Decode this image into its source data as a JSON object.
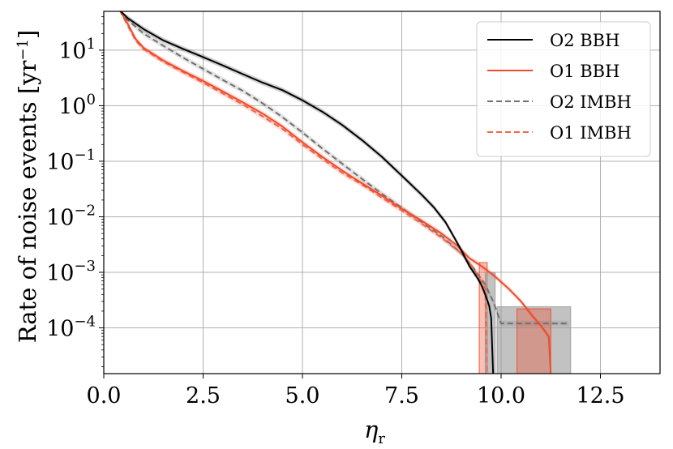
{
  "chart_data": {
    "type": "line",
    "xlabel": "η",
    "xlabel_subscript": "r",
    "ylabel": "Rate of noise events [yr",
    "ylabel_exponent": "−1",
    "ylabel_close": "]",
    "yscale": "log",
    "xlim": [
      0,
      14
    ],
    "ylim": [
      1.5e-05,
      50
    ],
    "grid": true,
    "legend_position": "top-right",
    "x_ticks": [
      {
        "value": 0.0,
        "label": "0.0"
      },
      {
        "value": 2.5,
        "label": "2.5"
      },
      {
        "value": 5.0,
        "label": "5.0"
      },
      {
        "value": 7.5,
        "label": "7.5"
      },
      {
        "value": 10.0,
        "label": "10.0"
      },
      {
        "value": 12.5,
        "label": "12.5"
      }
    ],
    "y_ticks": [
      {
        "value": 10,
        "base": "10",
        "exp": "1"
      },
      {
        "value": 1,
        "base": "10",
        "exp": "0"
      },
      {
        "value": 0.1,
        "base": "10",
        "exp": "−1"
      },
      {
        "value": 0.01,
        "base": "10",
        "exp": "−2"
      },
      {
        "value": 0.001,
        "base": "10",
        "exp": "−3"
      },
      {
        "value": 0.0001,
        "base": "10",
        "exp": "−4"
      }
    ],
    "series": [
      {
        "name": "O2 BBH",
        "color": "#000000",
        "dash": "solid",
        "x": [
          0.4,
          0.6,
          1.0,
          1.5,
          2.0,
          2.5,
          3.0,
          3.5,
          4.0,
          4.5,
          5.0,
          5.5,
          6.0,
          6.5,
          7.0,
          7.5,
          8.0,
          8.3,
          8.6,
          8.8,
          9.0,
          9.2,
          9.4,
          9.5,
          9.6,
          9.7,
          9.75,
          9.8
        ],
        "y": [
          60,
          38,
          24,
          15,
          10.5,
          7.5,
          5.3,
          3.7,
          2.6,
          1.9,
          1.25,
          0.78,
          0.45,
          0.24,
          0.12,
          0.055,
          0.025,
          0.015,
          0.008,
          0.0045,
          0.0025,
          0.0013,
          0.0008,
          0.0006,
          0.0004,
          0.00025,
          0.00015,
          1e-05
        ]
      },
      {
        "name": "O1 BBH",
        "color": "#ee4b2b",
        "dash": "solid",
        "x": [
          0.4,
          0.6,
          0.8,
          1.0,
          1.5,
          2.0,
          2.5,
          3.0,
          3.5,
          4.0,
          4.5,
          5.0,
          5.5,
          6.0,
          6.5,
          7.0,
          7.5,
          8.0,
          8.5,
          8.9,
          9.2,
          9.5,
          9.8,
          10.2,
          10.5,
          10.8,
          11.0,
          11.2,
          11.25
        ],
        "y": [
          60,
          30,
          16,
          11,
          6.5,
          4.2,
          2.8,
          1.8,
          1.15,
          0.72,
          0.42,
          0.22,
          0.12,
          0.068,
          0.04,
          0.024,
          0.014,
          0.0085,
          0.005,
          0.003,
          0.0018,
          0.0013,
          0.0009,
          0.0005,
          0.0003,
          0.00016,
          0.00011,
          7e-05,
          1e-05
        ]
      },
      {
        "name": "O2 IMBH",
        "color": "#707070",
        "dash": "dashed",
        "x": [
          0.4,
          0.6,
          1.0,
          1.5,
          2.0,
          2.5,
          3.0,
          3.5,
          4.0,
          4.5,
          5.0,
          5.5,
          6.0,
          6.5,
          7.0,
          7.5,
          8.0,
          8.5,
          9.0,
          9.3,
          9.6,
          9.8,
          10.0,
          10.5,
          11.0,
          11.5,
          11.7
        ],
        "y": [
          60,
          35,
          20,
          12,
          7.3,
          4.6,
          2.9,
          1.85,
          1.1,
          0.62,
          0.33,
          0.17,
          0.09,
          0.048,
          0.026,
          0.0145,
          0.008,
          0.0045,
          0.0022,
          0.0012,
          0.0006,
          0.0003,
          0.00012,
          0.00012,
          0.00012,
          0.00012,
          0.00012
        ]
      },
      {
        "name": "O1 IMBH",
        "color": "#f4644a",
        "dash": "dashed",
        "x": [
          0.4,
          0.6,
          0.8,
          1.0,
          1.5,
          2.0,
          2.5,
          3.0,
          3.5,
          4.0,
          4.5,
          5.0,
          5.5,
          6.0,
          6.5,
          7.0,
          7.5,
          8.0,
          8.5,
          9.0,
          9.3,
          9.6,
          9.65
        ],
        "y": [
          60,
          28,
          15,
          10.5,
          6.2,
          4.0,
          2.6,
          1.65,
          1.05,
          0.64,
          0.38,
          0.2,
          0.11,
          0.062,
          0.038,
          0.022,
          0.013,
          0.0075,
          0.0042,
          0.0022,
          0.0012,
          0.0005,
          1e-05
        ]
      }
    ],
    "bands": [
      {
        "series": "O2 IMBH",
        "color": "#999999",
        "opacity": 0.6,
        "x0": 9.9,
        "x1": 11.75,
        "y0": 1e-05,
        "y1": 0.00024
      },
      {
        "series": "O1 BBH",
        "color": "#ee4b2b",
        "opacity": 0.35,
        "x0": 10.4,
        "x1": 11.25,
        "y0": 1e-05,
        "y1": 0.00022
      },
      {
        "series": "O1 IMBH",
        "color": "#ee4b2b",
        "opacity": 0.35,
        "x0": 9.45,
        "x1": 9.65,
        "y0": 1e-05,
        "y1": 0.0015
      },
      {
        "series": "O2 BBH",
        "color": "#999999",
        "opacity": 0.6,
        "x0": 9.6,
        "x1": 9.85,
        "y0": 1e-05,
        "y1": 0.001
      }
    ]
  }
}
